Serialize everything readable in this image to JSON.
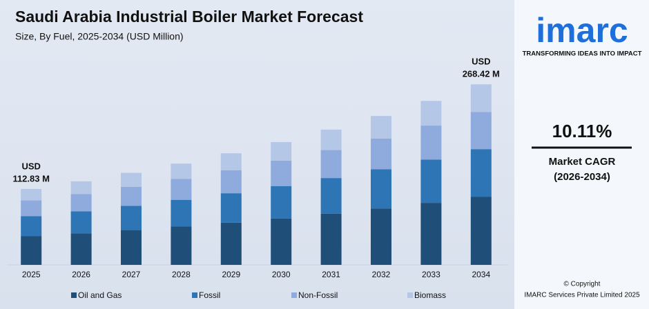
{
  "chart_data": {
    "type": "stacked-bar",
    "title": "Saudi Arabia Industrial Boiler Market Forecast",
    "subtitle": "Size, By Fuel, 2025-2034 (USD Million)",
    "categories": [
      "2025",
      "2026",
      "2027",
      "2028",
      "2029",
      "2030",
      "2031",
      "2032",
      "2033",
      "2034"
    ],
    "series": [
      {
        "name": "Oil and Gas",
        "color": "#1f4e79",
        "values": [
          42.58,
          46.9,
          51.7,
          56.9,
          62.7,
          69.0,
          76.0,
          83.7,
          92.2,
          101.42
        ]
      },
      {
        "name": "Fossil",
        "color": "#2e75b6",
        "values": [
          29.79,
          32.8,
          36.1,
          39.8,
          43.8,
          48.2,
          53.1,
          58.4,
          64.4,
          70.69
        ]
      },
      {
        "name": "Non-Fossil",
        "color": "#8faadc",
        "values": [
          23.47,
          25.7,
          28.3,
          31.2,
          34.3,
          37.8,
          41.6,
          45.8,
          50.5,
          55.32
        ]
      },
      {
        "name": "Biomass",
        "color": "#b4c7e7",
        "values": [
          16.99,
          18.8,
          20.7,
          22.7,
          25.1,
          27.6,
          30.4,
          33.5,
          36.7,
          40.99
        ]
      }
    ],
    "start_label": {
      "currency": "USD",
      "amount": "112.83 M"
    },
    "end_label": {
      "currency": "USD",
      "amount": "268.42 M"
    },
    "ylim": [
      0,
      280
    ]
  },
  "panel": {
    "logo": "imarc",
    "tagline": "TRANSFORMING IDEAS INTO IMPACT",
    "cagr": "10.11%",
    "cagr_label": "Market CAGR",
    "cagr_period": "(2026-2034)",
    "copyright": "© Copyright",
    "company": "IMARC Services Private Limited 2025"
  }
}
